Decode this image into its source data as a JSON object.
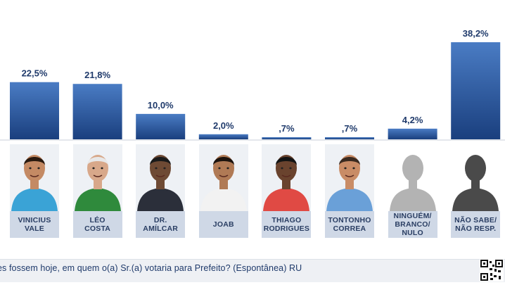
{
  "chart_data": {
    "type": "bar",
    "categories": [
      "VINICIUS\nVALE",
      "LÉO\nCOSTA",
      "DR.\nAMÍLCAR",
      "JOAB",
      "THIAGO\nRODRIGUES",
      "TONTONHO\nCORREA",
      "NINGUÉM/\nBRANCO/\nNULO",
      "NÃO SABE/\nNÃO RESP."
    ],
    "values": [
      22.5,
      21.8,
      10.0,
      2.0,
      0.7,
      0.7,
      4.2,
      38.2
    ],
    "value_labels": [
      "22,5%",
      "21,8%",
      "10,0%",
      "2,0%",
      ",7%",
      ",7%",
      "4,2%",
      "38,2%"
    ],
    "ylim": [
      0,
      38.2
    ],
    "colors": {
      "bar_top": "#3f6fb8",
      "bar_bottom": "#1a3f7e",
      "value_text": "#1f3a6b"
    }
  },
  "photos": [
    {
      "name": "vinicius-vale-photo",
      "shirt": "#3aa3d6",
      "skin": "#c48a64",
      "hair": "#2a1a10"
    },
    {
      "name": "leo-costa-photo",
      "shirt": "#2f8a3c",
      "skin": "#d8a88a",
      "hair": "#e8e8e8"
    },
    {
      "name": "dr-amilcar-photo",
      "shirt": "#2b2f3a",
      "skin": "#6e4a34",
      "hair": "#1a1a1a"
    },
    {
      "name": "joab-photo",
      "shirt": "#f2f2f2",
      "skin": "#b07a55",
      "hair": "#1c130e"
    },
    {
      "name": "thiago-rodrigues-photo",
      "shirt": "#e04a44",
      "skin": "#6a432e",
      "hair": "#141414"
    },
    {
      "name": "tontonho-correa-photo",
      "shirt": "#6aa0d8",
      "skin": "#c98c66",
      "hair": "#3a2a20"
    },
    {
      "name": "ninguem-silhouette",
      "shirt": "#b3b3b3",
      "skin": "#b3b3b3",
      "hair": "#b3b3b3"
    },
    {
      "name": "nao-sabe-silhouette",
      "shirt": "#4a4a4a",
      "skin": "#4a4a4a",
      "hair": "#4a4a4a"
    }
  ],
  "footer": {
    "question": "es fossem hoje, em quem o(a) Sr.(a) votaria para Prefeito? (Espontânea) RU"
  }
}
